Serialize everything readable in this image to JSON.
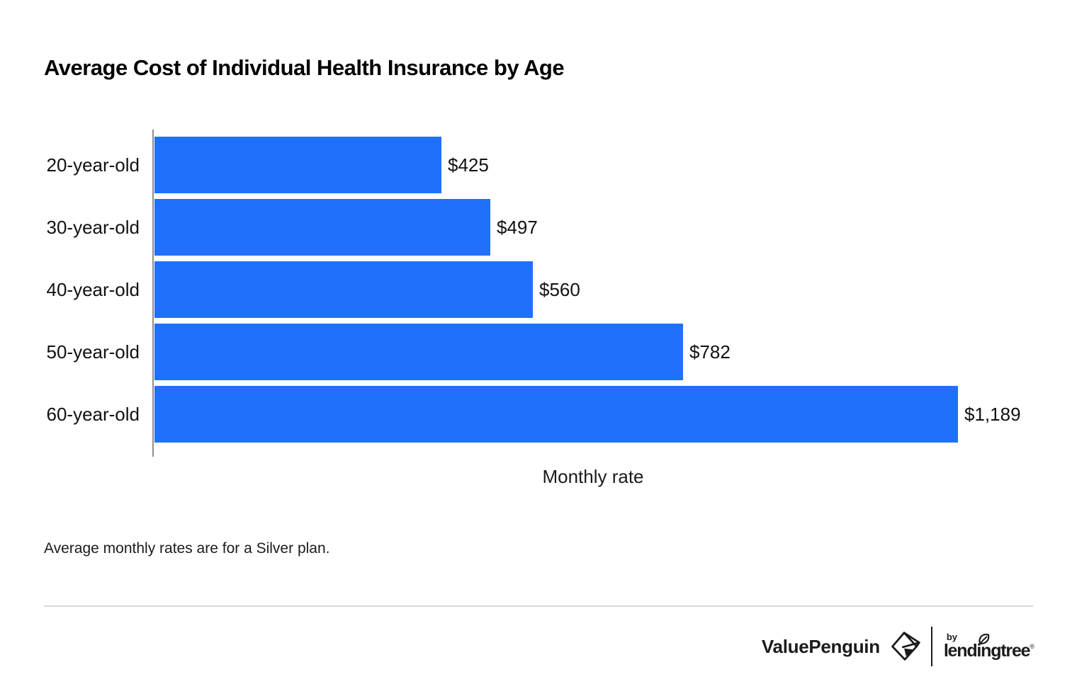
{
  "title": "Average Cost of Individual Health Insurance by Age",
  "chart_data": {
    "type": "bar",
    "orientation": "horizontal",
    "title": "Average Cost of Individual Health Insurance by Age",
    "categories": [
      "20-year-old",
      "30-year-old",
      "40-year-old",
      "50-year-old",
      "60-year-old"
    ],
    "values": [
      425,
      497,
      560,
      782,
      1189
    ],
    "value_labels": [
      "$425",
      "$497",
      "$560",
      "$782",
      "$1,189"
    ],
    "xlabel": "Monthly rate",
    "ylabel": "",
    "legend": "none",
    "grid": false,
    "bar_color": "#2170fb",
    "axis_color": "#8e8e8e",
    "label_color": "#111111"
  },
  "footnote": "Average monthly rates are for a Silver plan.",
  "footer": {
    "brand": "ValuePenguin",
    "by_label": "by",
    "partner_brand": "lendingtree",
    "trademark": "®"
  },
  "colors": {
    "background": "#ffffff",
    "title_text": "#000000",
    "divider": "#d9d9d9",
    "logo_text": "#1b1b1b"
  }
}
